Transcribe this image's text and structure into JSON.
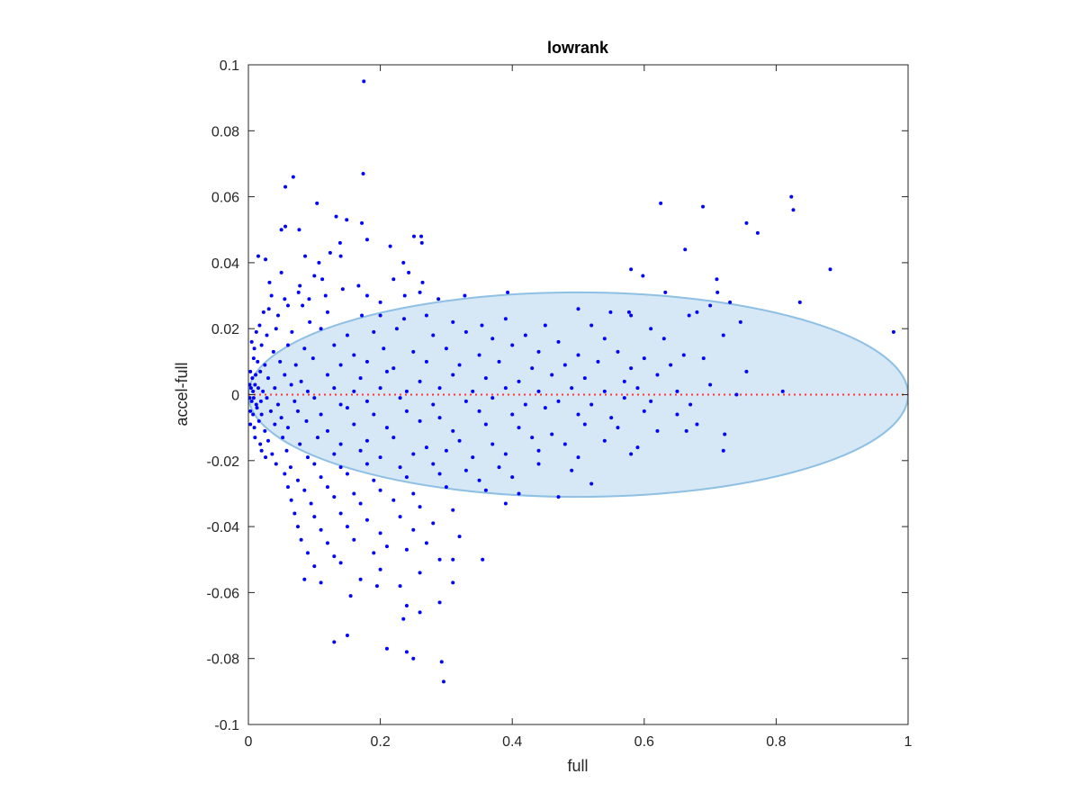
{
  "chart_data": {
    "type": "scatter",
    "title": "lowrank",
    "xlabel": "full",
    "ylabel": "accel-full",
    "xlim": [
      0,
      1
    ],
    "ylim": [
      -0.1,
      0.1
    ],
    "x_ticks": [
      0,
      0.2,
      0.4,
      0.6,
      0.8,
      1
    ],
    "x_tick_labels": [
      "0",
      "0.2",
      "0.4",
      "0.6",
      "0.8",
      "1"
    ],
    "y_ticks": [
      -0.1,
      -0.08,
      -0.06,
      -0.04,
      -0.02,
      0,
      0.02,
      0.04,
      0.06,
      0.08,
      0.1
    ],
    "y_tick_labels": [
      "-0.1",
      "-0.08",
      "-0.06",
      "-0.04",
      "-0.02",
      "0",
      "0.02",
      "0.04",
      "0.06",
      "0.08",
      "0.1"
    ],
    "grid": false,
    "marker_color": "#0000ff",
    "zero_line": {
      "y": 0,
      "color": "#ff3333",
      "style": "dotted"
    },
    "ellipse": {
      "center": [
        0.5,
        0
      ],
      "radii": [
        0.5,
        0.031
      ],
      "fill": "#d6e8f5",
      "stroke": "#8ec0e4"
    },
    "points": [
      [
        0.175,
        0.095
      ],
      [
        0.174,
        0.067
      ],
      [
        0.068,
        0.066
      ],
      [
        0.056,
        0.063
      ],
      [
        0.104,
        0.058
      ],
      [
        0.625,
        0.058
      ],
      [
        0.823,
        0.06
      ],
      [
        0.826,
        0.056
      ],
      [
        0.689,
        0.057
      ],
      [
        0.755,
        0.052
      ],
      [
        0.772,
        0.049
      ],
      [
        0.133,
        0.054
      ],
      [
        0.172,
        0.052
      ],
      [
        0.149,
        0.053
      ],
      [
        0.056,
        0.051
      ],
      [
        0.05,
        0.05
      ],
      [
        0.077,
        0.05
      ],
      [
        0.139,
        0.046
      ],
      [
        0.18,
        0.047
      ],
      [
        0.215,
        0.045
      ],
      [
        0.251,
        0.048
      ],
      [
        0.262,
        0.048
      ],
      [
        0.263,
        0.046
      ],
      [
        0.124,
        0.043
      ],
      [
        0.14,
        0.042
      ],
      [
        0.662,
        0.044
      ],
      [
        0.015,
        0.042
      ],
      [
        0.026,
        0.041
      ],
      [
        0.086,
        0.042
      ],
      [
        0.107,
        0.04
      ],
      [
        0.235,
        0.04
      ],
      [
        0.58,
        0.038
      ],
      [
        0.882,
        0.038
      ],
      [
        0.05,
        0.037
      ],
      [
        0.1,
        0.036
      ],
      [
        0.112,
        0.035
      ],
      [
        0.167,
        0.033
      ],
      [
        0.22,
        0.035
      ],
      [
        0.243,
        0.037
      ],
      [
        0.264,
        0.034
      ],
      [
        0.598,
        0.036
      ],
      [
        0.71,
        0.035
      ],
      [
        0.711,
        0.031
      ],
      [
        0.032,
        0.034
      ],
      [
        0.078,
        0.033
      ],
      [
        0.143,
        0.032
      ],
      [
        0.18,
        0.03
      ],
      [
        0.26,
        0.031
      ],
      [
        0.035,
        0.03
      ],
      [
        0.055,
        0.029
      ],
      [
        0.076,
        0.031
      ],
      [
        0.092,
        0.029
      ],
      [
        0.117,
        0.03
      ],
      [
        0.2,
        0.028
      ],
      [
        0.237,
        0.03
      ],
      [
        0.288,
        0.029
      ],
      [
        0.328,
        0.03
      ],
      [
        0.393,
        0.031
      ],
      [
        0.632,
        0.031
      ],
      [
        0.836,
        0.028
      ],
      [
        0.73,
        0.028
      ],
      [
        0.58,
        0.024
      ],
      [
        0.577,
        0.025
      ],
      [
        0.549,
        0.025
      ],
      [
        0.5,
        0.026
      ],
      [
        0.668,
        0.024
      ],
      [
        0.68,
        0.025
      ],
      [
        0.7,
        0.027
      ],
      [
        0.746,
        0.022
      ],
      [
        0.978,
        0.019
      ],
      [
        0.06,
        0.027
      ],
      [
        0.031,
        0.026
      ],
      [
        0.023,
        0.025
      ],
      [
        0.045,
        0.024
      ],
      [
        0.082,
        0.027
      ],
      [
        0.12,
        0.025
      ],
      [
        0.093,
        0.022
      ],
      [
        0.172,
        0.024
      ],
      [
        0.2,
        0.024
      ],
      [
        0.236,
        0.023
      ],
      [
        0.27,
        0.024
      ],
      [
        0.31,
        0.022
      ],
      [
        0.354,
        0.021
      ],
      [
        0.39,
        0.023
      ],
      [
        0.45,
        0.021
      ],
      [
        0.52,
        0.021
      ],
      [
        0.61,
        0.02
      ],
      [
        0.017,
        0.021
      ],
      [
        0.012,
        0.019
      ],
      [
        0.028,
        0.018
      ],
      [
        0.042,
        0.02
      ],
      [
        0.066,
        0.019
      ],
      [
        0.11,
        0.02
      ],
      [
        0.15,
        0.018
      ],
      [
        0.19,
        0.019
      ],
      [
        0.225,
        0.02
      ],
      [
        0.28,
        0.018
      ],
      [
        0.33,
        0.019
      ],
      [
        0.37,
        0.017
      ],
      [
        0.42,
        0.018
      ],
      [
        0.47,
        0.016
      ],
      [
        0.54,
        0.017
      ],
      [
        0.63,
        0.017
      ],
      [
        0.72,
        0.018
      ],
      [
        0.005,
        0.016
      ],
      [
        0.009,
        0.014
      ],
      [
        0.02,
        0.015
      ],
      [
        0.038,
        0.013
      ],
      [
        0.06,
        0.015
      ],
      [
        0.085,
        0.014
      ],
      [
        0.13,
        0.015
      ],
      [
        0.16,
        0.012
      ],
      [
        0.205,
        0.014
      ],
      [
        0.25,
        0.013
      ],
      [
        0.3,
        0.014
      ],
      [
        0.35,
        0.012
      ],
      [
        0.4,
        0.015
      ],
      [
        0.44,
        0.013
      ],
      [
        0.5,
        0.012
      ],
      [
        0.56,
        0.013
      ],
      [
        0.6,
        0.011
      ],
      [
        0.66,
        0.012
      ],
      [
        0.008,
        0.011
      ],
      [
        0.014,
        0.01
      ],
      [
        0.025,
        0.009
      ],
      [
        0.048,
        0.01
      ],
      [
        0.072,
        0.009
      ],
      [
        0.098,
        0.011
      ],
      [
        0.14,
        0.009
      ],
      [
        0.18,
        0.01
      ],
      [
        0.22,
        0.008
      ],
      [
        0.27,
        0.01
      ],
      [
        0.32,
        0.009
      ],
      [
        0.38,
        0.01
      ],
      [
        0.43,
        0.008
      ],
      [
        0.48,
        0.009
      ],
      [
        0.53,
        0.01
      ],
      [
        0.58,
        0.008
      ],
      [
        0.64,
        0.009
      ],
      [
        0.69,
        0.011
      ],
      [
        0.003,
        0.007
      ],
      [
        0.006,
        0.005
      ],
      [
        0.011,
        0.006
      ],
      [
        0.018,
        0.007
      ],
      [
        0.03,
        0.005
      ],
      [
        0.055,
        0.006
      ],
      [
        0.08,
        0.004
      ],
      [
        0.12,
        0.006
      ],
      [
        0.17,
        0.005
      ],
      [
        0.21,
        0.007
      ],
      [
        0.26,
        0.004
      ],
      [
        0.31,
        0.006
      ],
      [
        0.36,
        0.005
      ],
      [
        0.41,
        0.004
      ],
      [
        0.46,
        0.006
      ],
      [
        0.51,
        0.005
      ],
      [
        0.57,
        0.004
      ],
      [
        0.62,
        0.006
      ],
      [
        0.755,
        0.007
      ],
      [
        0.002,
        0.003
      ],
      [
        0.004,
        0.002
      ],
      [
        0.007,
        0.001
      ],
      [
        0.01,
        0.003
      ],
      [
        0.015,
        0.002
      ],
      [
        0.022,
        0.001
      ],
      [
        0.04,
        0.002
      ],
      [
        0.065,
        0.003
      ],
      [
        0.09,
        0.001
      ],
      [
        0.13,
        0.002
      ],
      [
        0.16,
        0.001
      ],
      [
        0.2,
        0.002
      ],
      [
        0.24,
        0.001
      ],
      [
        0.29,
        0.002
      ],
      [
        0.34,
        0.001
      ],
      [
        0.39,
        0.002
      ],
      [
        0.44,
        0.001
      ],
      [
        0.49,
        0.002
      ],
      [
        0.54,
        0.001
      ],
      [
        0.59,
        0.002
      ],
      [
        0.65,
        0.001
      ],
      [
        0.7,
        0.003
      ],
      [
        0.74,
        0.0
      ],
      [
        0.81,
        0.001
      ],
      [
        0.002,
        -0.001
      ],
      [
        0.005,
        -0.002
      ],
      [
        0.008,
        -0.001
      ],
      [
        0.012,
        -0.003
      ],
      [
        0.019,
        -0.002
      ],
      [
        0.028,
        -0.001
      ],
      [
        0.045,
        -0.003
      ],
      [
        0.07,
        -0.002
      ],
      [
        0.1,
        -0.001
      ],
      [
        0.14,
        -0.003
      ],
      [
        0.18,
        -0.002
      ],
      [
        0.23,
        -0.001
      ],
      [
        0.28,
        -0.003
      ],
      [
        0.33,
        -0.002
      ],
      [
        0.37,
        -0.001
      ],
      [
        0.42,
        -0.003
      ],
      [
        0.47,
        -0.002
      ],
      [
        0.52,
        -0.003
      ],
      [
        0.57,
        -0.001
      ],
      [
        0.61,
        -0.002
      ],
      [
        0.67,
        -0.003
      ],
      [
        0.003,
        -0.005
      ],
      [
        0.007,
        -0.006
      ],
      [
        0.013,
        -0.004
      ],
      [
        0.02,
        -0.006
      ],
      [
        0.034,
        -0.005
      ],
      [
        0.05,
        -0.007
      ],
      [
        0.075,
        -0.005
      ],
      [
        0.11,
        -0.006
      ],
      [
        0.15,
        -0.004
      ],
      [
        0.19,
        -0.006
      ],
      [
        0.24,
        -0.005
      ],
      [
        0.29,
        -0.007
      ],
      [
        0.35,
        -0.005
      ],
      [
        0.4,
        -0.006
      ],
      [
        0.45,
        -0.004
      ],
      [
        0.5,
        -0.006
      ],
      [
        0.55,
        -0.007
      ],
      [
        0.6,
        -0.005
      ],
      [
        0.65,
        -0.006
      ],
      [
        0.68,
        -0.009
      ],
      [
        0.003,
        -0.009
      ],
      [
        0.009,
        -0.01
      ],
      [
        0.016,
        -0.008
      ],
      [
        0.025,
        -0.011
      ],
      [
        0.04,
        -0.009
      ],
      [
        0.06,
        -0.01
      ],
      [
        0.088,
        -0.008
      ],
      [
        0.12,
        -0.011
      ],
      [
        0.16,
        -0.009
      ],
      [
        0.21,
        -0.01
      ],
      [
        0.26,
        -0.008
      ],
      [
        0.31,
        -0.011
      ],
      [
        0.36,
        -0.009
      ],
      [
        0.41,
        -0.01
      ],
      [
        0.46,
        -0.012
      ],
      [
        0.51,
        -0.009
      ],
      [
        0.56,
        -0.01
      ],
      [
        0.62,
        -0.011
      ],
      [
        0.664,
        -0.011
      ],
      [
        0.722,
        -0.012
      ],
      [
        0.01,
        -0.013
      ],
      [
        0.018,
        -0.015
      ],
      [
        0.03,
        -0.014
      ],
      [
        0.052,
        -0.013
      ],
      [
        0.078,
        -0.015
      ],
      [
        0.105,
        -0.013
      ],
      [
        0.14,
        -0.015
      ],
      [
        0.18,
        -0.014
      ],
      [
        0.22,
        -0.013
      ],
      [
        0.27,
        -0.016
      ],
      [
        0.32,
        -0.014
      ],
      [
        0.37,
        -0.015
      ],
      [
        0.43,
        -0.013
      ],
      [
        0.48,
        -0.015
      ],
      [
        0.54,
        -0.014
      ],
      [
        0.59,
        -0.016
      ],
      [
        0.02,
        -0.017
      ],
      [
        0.026,
        -0.019
      ],
      [
        0.036,
        -0.018
      ],
      [
        0.058,
        -0.017
      ],
      [
        0.09,
        -0.019
      ],
      [
        0.13,
        -0.018
      ],
      [
        0.17,
        -0.017
      ],
      [
        0.2,
        -0.019
      ],
      [
        0.25,
        -0.018
      ],
      [
        0.3,
        -0.017
      ],
      [
        0.34,
        -0.019
      ],
      [
        0.39,
        -0.018
      ],
      [
        0.44,
        -0.017
      ],
      [
        0.5,
        -0.019
      ],
      [
        0.58,
        -0.018
      ],
      [
        0.72,
        -0.017
      ],
      [
        0.042,
        -0.021
      ],
      [
        0.064,
        -0.022
      ],
      [
        0.1,
        -0.021
      ],
      [
        0.14,
        -0.022
      ],
      [
        0.18,
        -0.021
      ],
      [
        0.23,
        -0.022
      ],
      [
        0.28,
        -0.021
      ],
      [
        0.33,
        -0.023
      ],
      [
        0.38,
        -0.022
      ],
      [
        0.44,
        -0.021
      ],
      [
        0.49,
        -0.023
      ],
      [
        0.055,
        -0.024
      ],
      [
        0.075,
        -0.026
      ],
      [
        0.11,
        -0.025
      ],
      [
        0.15,
        -0.024
      ],
      [
        0.19,
        -0.026
      ],
      [
        0.24,
        -0.025
      ],
      [
        0.29,
        -0.024
      ],
      [
        0.35,
        -0.026
      ],
      [
        0.4,
        -0.025
      ],
      [
        0.52,
        -0.027
      ],
      [
        0.06,
        -0.028
      ],
      [
        0.085,
        -0.029
      ],
      [
        0.12,
        -0.028
      ],
      [
        0.16,
        -0.03
      ],
      [
        0.2,
        -0.029
      ],
      [
        0.25,
        -0.03
      ],
      [
        0.3,
        -0.028
      ],
      [
        0.36,
        -0.029
      ],
      [
        0.41,
        -0.03
      ],
      [
        0.47,
        -0.031
      ],
      [
        0.065,
        -0.032
      ],
      [
        0.095,
        -0.033
      ],
      [
        0.13,
        -0.031
      ],
      [
        0.17,
        -0.033
      ],
      [
        0.22,
        -0.032
      ],
      [
        0.26,
        -0.034
      ],
      [
        0.31,
        -0.035
      ],
      [
        0.39,
        -0.033
      ],
      [
        0.07,
        -0.036
      ],
      [
        0.1,
        -0.037
      ],
      [
        0.14,
        -0.036
      ],
      [
        0.18,
        -0.038
      ],
      [
        0.23,
        -0.037
      ],
      [
        0.28,
        -0.039
      ],
      [
        0.075,
        -0.04
      ],
      [
        0.11,
        -0.041
      ],
      [
        0.15,
        -0.04
      ],
      [
        0.2,
        -0.042
      ],
      [
        0.25,
        -0.041
      ],
      [
        0.32,
        -0.043
      ],
      [
        0.08,
        -0.044
      ],
      [
        0.12,
        -0.045
      ],
      [
        0.16,
        -0.044
      ],
      [
        0.21,
        -0.046
      ],
      [
        0.27,
        -0.045
      ],
      [
        0.09,
        -0.048
      ],
      [
        0.13,
        -0.049
      ],
      [
        0.19,
        -0.048
      ],
      [
        0.24,
        -0.047
      ],
      [
        0.31,
        -0.05
      ],
      [
        0.355,
        -0.05
      ],
      [
        0.1,
        -0.052
      ],
      [
        0.14,
        -0.051
      ],
      [
        0.2,
        -0.053
      ],
      [
        0.26,
        -0.054
      ],
      [
        0.29,
        -0.05
      ],
      [
        0.085,
        -0.056
      ],
      [
        0.11,
        -0.057
      ],
      [
        0.17,
        -0.056
      ],
      [
        0.23,
        -0.058
      ],
      [
        0.31,
        -0.057
      ],
      [
        0.155,
        -0.061
      ],
      [
        0.195,
        -0.058
      ],
      [
        0.24,
        -0.064
      ],
      [
        0.26,
        -0.066
      ],
      [
        0.29,
        -0.063
      ],
      [
        0.235,
        -0.068
      ],
      [
        0.13,
        -0.075
      ],
      [
        0.15,
        -0.073
      ],
      [
        0.21,
        -0.077
      ],
      [
        0.24,
        -0.078
      ],
      [
        0.25,
        -0.08
      ],
      [
        0.293,
        -0.081
      ],
      [
        0.296,
        -0.087
      ]
    ]
  }
}
